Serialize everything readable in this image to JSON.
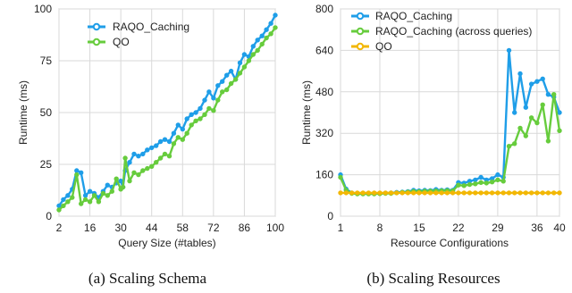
{
  "chart_data": [
    {
      "type": "line",
      "title": "",
      "xlabel": "Query Size (#tables)",
      "ylabel": "Runtime (ms)",
      "xlim": [
        2,
        100
      ],
      "ylim": [
        0,
        100
      ],
      "xticks": [
        "2",
        "16",
        "30",
        "44",
        "58",
        "72",
        "86",
        "100"
      ],
      "yticks": [
        "0",
        "25",
        "50",
        "75",
        "100"
      ],
      "grid": true,
      "legend_position": "top-left",
      "caption": "(a) Scaling Schema",
      "series": [
        {
          "name": "RAQO_Caching",
          "color": "#1f9ee8",
          "x": [
            2,
            4,
            6,
            8,
            10,
            12,
            14,
            16,
            18,
            20,
            22,
            24,
            26,
            28,
            30,
            31,
            32,
            34,
            36,
            38,
            40,
            42,
            44,
            46,
            48,
            50,
            52,
            54,
            56,
            58,
            60,
            62,
            64,
            66,
            68,
            70,
            72,
            74,
            76,
            78,
            80,
            82,
            84,
            86,
            88,
            90,
            92,
            94,
            96,
            98,
            100
          ],
          "y": [
            5,
            8,
            10,
            13,
            22,
            21,
            10,
            12,
            11,
            9,
            12,
            15,
            14,
            16,
            17,
            14,
            22,
            26,
            30,
            29,
            30,
            32,
            33,
            34,
            36,
            37,
            36,
            40,
            44,
            42,
            47,
            49,
            50,
            52,
            56,
            60,
            57,
            63,
            65,
            68,
            70,
            66,
            74,
            78,
            77,
            82,
            85,
            87,
            90,
            93,
            97
          ]
        },
        {
          "name": "QO",
          "color": "#67cc3d",
          "x": [
            2,
            4,
            6,
            8,
            10,
            12,
            14,
            16,
            18,
            20,
            22,
            24,
            26,
            28,
            30,
            31,
            32,
            34,
            36,
            38,
            40,
            42,
            44,
            46,
            48,
            50,
            52,
            54,
            56,
            58,
            60,
            62,
            64,
            66,
            68,
            70,
            72,
            74,
            76,
            78,
            80,
            82,
            84,
            86,
            88,
            90,
            92,
            94,
            96,
            98,
            100
          ],
          "y": [
            3,
            5,
            7,
            9,
            20,
            6,
            8,
            7,
            10,
            7,
            11,
            10,
            12,
            18,
            13,
            14,
            28,
            17,
            21,
            20,
            22,
            23,
            24,
            26,
            28,
            30,
            29,
            35,
            38,
            37,
            40,
            44,
            46,
            47,
            49,
            52,
            51,
            56,
            60,
            61,
            64,
            66,
            69,
            72,
            75,
            78,
            80,
            83,
            86,
            88,
            91
          ]
        }
      ]
    },
    {
      "type": "line",
      "title": "",
      "xlabel": "Resource Configurations",
      "ylabel": "Runtime (ms)",
      "xlim": [
        1,
        40
      ],
      "ylim": [
        0,
        800
      ],
      "xticks": [
        "1",
        "8",
        "15",
        "22",
        "29",
        "36",
        "40"
      ],
      "yticks": [
        "0",
        "160",
        "320",
        "480",
        "640",
        "800"
      ],
      "grid": true,
      "legend_position": "top-left",
      "caption": "(b) Scaling Resources",
      "series": [
        {
          "name": "RAQO_Caching",
          "color": "#1f9ee8",
          "x": [
            1,
            2,
            3,
            4,
            5,
            6,
            7,
            8,
            9,
            10,
            11,
            12,
            13,
            14,
            15,
            16,
            17,
            18,
            19,
            20,
            21,
            22,
            23,
            24,
            25,
            26,
            27,
            28,
            29,
            30,
            31,
            32,
            33,
            34,
            35,
            36,
            37,
            38,
            39,
            40
          ],
          "y": [
            160,
            105,
            90,
            88,
            87,
            87,
            88,
            88,
            89,
            90,
            92,
            93,
            95,
            100,
            98,
            100,
            99,
            103,
            100,
            102,
            100,
            130,
            128,
            135,
            140,
            150,
            140,
            145,
            160,
            150,
            640,
            400,
            550,
            420,
            510,
            520,
            530,
            470,
            460,
            400
          ]
        },
        {
          "name": "RAQO_Caching (across queries)",
          "color": "#67cc3d",
          "x": [
            1,
            2,
            3,
            4,
            5,
            6,
            7,
            8,
            9,
            10,
            11,
            12,
            13,
            14,
            15,
            16,
            17,
            18,
            19,
            20,
            21,
            22,
            23,
            24,
            25,
            26,
            27,
            28,
            29,
            30,
            31,
            32,
            33,
            34,
            35,
            36,
            37,
            38,
            39,
            40
          ],
          "y": [
            150,
            100,
            88,
            86,
            86,
            86,
            86,
            87,
            88,
            88,
            90,
            92,
            93,
            96,
            95,
            97,
            97,
            98,
            98,
            99,
            98,
            120,
            118,
            122,
            125,
            130,
            128,
            132,
            140,
            135,
            270,
            280,
            340,
            310,
            380,
            360,
            430,
            290,
            470,
            330
          ]
        },
        {
          "name": "QO",
          "color": "#f2b705",
          "x": [
            1,
            2,
            3,
            4,
            5,
            6,
            7,
            8,
            9,
            10,
            11,
            12,
            13,
            14,
            15,
            16,
            17,
            18,
            19,
            20,
            21,
            22,
            23,
            24,
            25,
            26,
            27,
            28,
            29,
            30,
            31,
            32,
            33,
            34,
            35,
            36,
            37,
            38,
            39,
            40
          ],
          "y": [
            90,
            90,
            90,
            90,
            90,
            90,
            90,
            90,
            90,
            90,
            90,
            90,
            90,
            90,
            90,
            90,
            90,
            90,
            90,
            90,
            90,
            90,
            90,
            90,
            90,
            90,
            90,
            90,
            90,
            90,
            90,
            90,
            90,
            90,
            90,
            90,
            90,
            90,
            90,
            90
          ]
        }
      ]
    }
  ]
}
